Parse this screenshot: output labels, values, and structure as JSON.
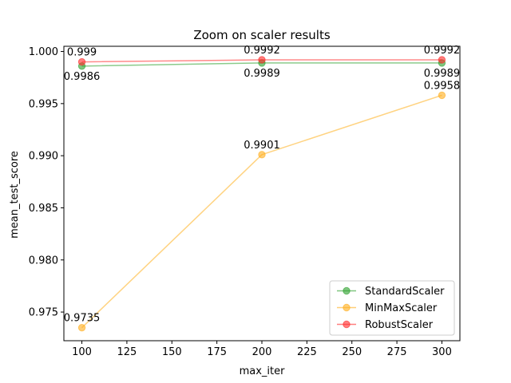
{
  "chart_data": {
    "type": "line",
    "title": "Zoom on scaler results",
    "xlabel": "max_iter",
    "ylabel": "mean_test_score",
    "x": [
      100,
      200,
      300
    ],
    "xlim": [
      90,
      310
    ],
    "ylim": [
      0.97225,
      1.0005
    ],
    "xticks": [
      100,
      125,
      150,
      175,
      200,
      225,
      250,
      275,
      300
    ],
    "yticks": [
      0.975,
      0.98,
      0.985,
      0.99,
      0.995,
      1.0
    ],
    "ytick_labels": [
      "0.975",
      "0.980",
      "0.985",
      "0.990",
      "0.995",
      "1.000"
    ],
    "grid": false,
    "legend_position": "lower-right",
    "series": [
      {
        "name": "StandardScaler",
        "color": "#2ca02c",
        "values": [
          0.9986,
          0.9989,
          0.9989
        ],
        "labels": [
          "0.9986",
          "0.9989",
          "0.9989"
        ],
        "label_position": [
          "below",
          "below",
          "below"
        ]
      },
      {
        "name": "MinMaxScaler",
        "color": "#ffae1a",
        "values": [
          0.9735,
          0.9901,
          0.9958
        ],
        "labels": [
          "0.9735",
          "0.9901",
          "0.9958"
        ],
        "label_position": [
          "above",
          "above",
          "above"
        ]
      },
      {
        "name": "RobustScaler",
        "color": "#ff2a2a",
        "values": [
          0.999,
          0.9992,
          0.9992
        ],
        "labels": [
          "0.999",
          "0.9992",
          "0.9992"
        ],
        "label_position": [
          "above",
          "above",
          "above"
        ]
      }
    ]
  }
}
